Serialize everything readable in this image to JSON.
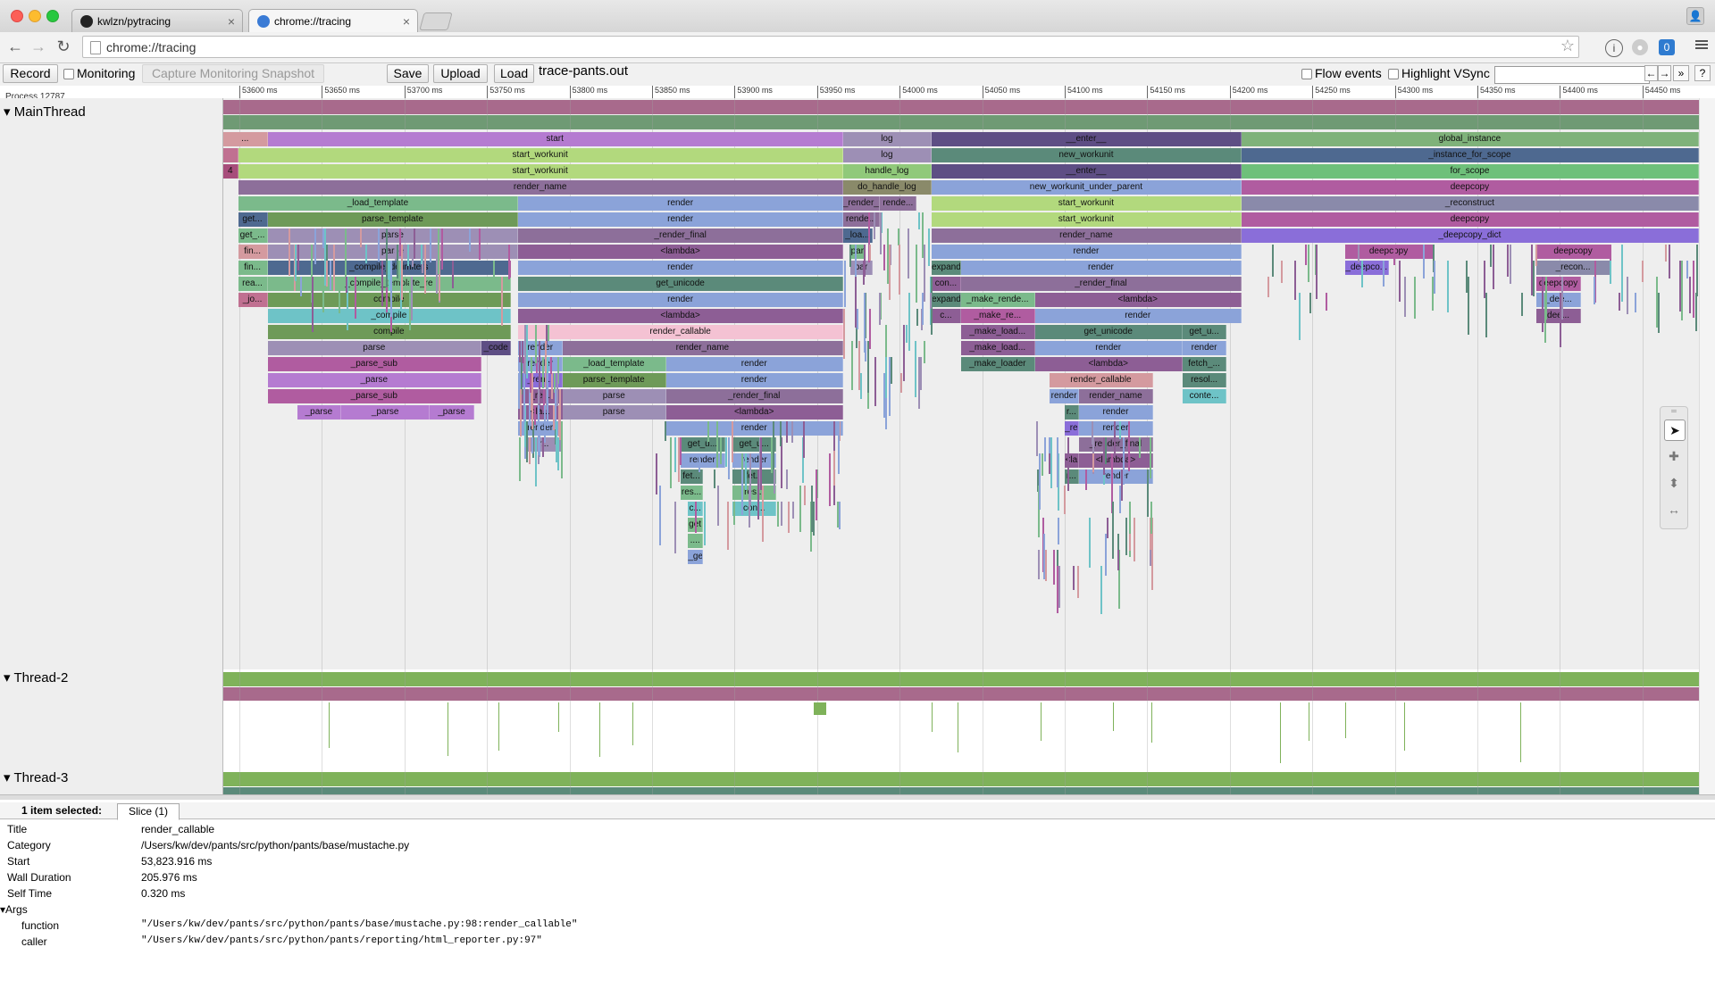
{
  "browser": {
    "tabs": [
      {
        "label": "kwlzn/pytracing",
        "active": false
      },
      {
        "label": "chrome://tracing",
        "active": true
      }
    ],
    "url": "chrome://tracing"
  },
  "tracebar": {
    "record": "Record",
    "monitoring": "Monitoring",
    "capture": "Capture Monitoring Snapshot",
    "save": "Save",
    "upload": "Upload",
    "load": "Load",
    "filename": "trace-pants.out",
    "flow_events": "Flow events",
    "highlight_vsync": "Highlight VSync",
    "search_placeholder": "",
    "prev": "←",
    "next": "→",
    "expand": "»",
    "help": "?"
  },
  "ruler": {
    "ticks": [
      "53600 ms",
      "53650 ms",
      "53700 ms",
      "53750 ms",
      "53800 ms",
      "53850 ms",
      "53900 ms",
      "53950 ms",
      "54000 ms",
      "54050 ms",
      "54100 ms",
      "54150 ms",
      "54200 ms",
      "54250 ms",
      "54300 ms",
      "54350 ms",
      "54400 ms",
      "54450 ms"
    ]
  },
  "process_label": "Process 12787",
  "threads": {
    "main": "MainThread",
    "thread2": "Thread-2",
    "thread3": "Thread-3"
  },
  "slices": [
    {
      "row": 2,
      "start": 0,
      "end": 3,
      "label": "...",
      "color": "#d49a9f"
    },
    {
      "row": 2,
      "start": 3,
      "end": 42,
      "label": "start",
      "color": "#b57bd1"
    },
    {
      "row": 2,
      "start": 42,
      "end": 48,
      "label": "log",
      "color": "#9d8fb5"
    },
    {
      "row": 2,
      "start": 48,
      "end": 69,
      "label": "__enter__",
      "color": "#5e4e84"
    },
    {
      "row": 2,
      "start": 69,
      "end": 100,
      "label": "global_instance",
      "color": "#7fb27a"
    },
    {
      "row": 3,
      "start": 0,
      "end": 1,
      "label": "",
      "color": "#c07091"
    },
    {
      "row": 3,
      "start": 1,
      "end": 42,
      "label": "start_workunit",
      "color": "#b2d97d"
    },
    {
      "row": 3,
      "start": 42,
      "end": 48,
      "label": "log",
      "color": "#9d8fb5"
    },
    {
      "row": 3,
      "start": 48,
      "end": 69,
      "label": "new_workunit",
      "color": "#5b8a7a"
    },
    {
      "row": 3,
      "start": 69,
      "end": 100,
      "label": "_instance_for_scope",
      "color": "#4e6990"
    },
    {
      "row": 4,
      "start": 0,
      "end": 1,
      "label": "4",
      "color": "#a74d7b"
    },
    {
      "row": 4,
      "start": 1,
      "end": 42,
      "label": "start_workunit",
      "color": "#b2d97d"
    },
    {
      "row": 4,
      "start": 42,
      "end": 48,
      "label": "handle_log",
      "color": "#90c97a"
    },
    {
      "row": 4,
      "start": 48,
      "end": 69,
      "label": "__enter__",
      "color": "#5e4e84"
    },
    {
      "row": 4,
      "start": 69,
      "end": 100,
      "label": "for_scope",
      "color": "#6ec07a"
    },
    {
      "row": 5,
      "start": 1,
      "end": 42,
      "label": "render_name",
      "color": "#8d6f9a"
    },
    {
      "row": 5,
      "start": 42,
      "end": 48,
      "label": "do_handle_log",
      "color": "#8a8a6a"
    },
    {
      "row": 5,
      "start": 48,
      "end": 69,
      "label": "new_workunit_under_parent",
      "color": "#8ba3d9"
    },
    {
      "row": 5,
      "start": 69,
      "end": 100,
      "label": "deepcopy",
      "color": "#b05ca0"
    },
    {
      "row": 6,
      "start": 1,
      "end": 20,
      "label": "_load_template",
      "color": "#7bba8b"
    },
    {
      "row": 6,
      "start": 20,
      "end": 42,
      "label": "render",
      "color": "#8ba3d9"
    },
    {
      "row": 6,
      "start": 42,
      "end": 44.5,
      "label": "_render_...",
      "color": "#8d6f9a"
    },
    {
      "row": 6,
      "start": 44.5,
      "end": 47,
      "label": "rende...",
      "color": "#8d6f9a"
    },
    {
      "row": 6,
      "start": 48,
      "end": 69,
      "label": "start_workunit",
      "color": "#b2d97d"
    },
    {
      "row": 6,
      "start": 69,
      "end": 100,
      "label": "_reconstruct",
      "color": "#8a8aaa"
    },
    {
      "row": 7,
      "start": 1,
      "end": 3,
      "label": "get...",
      "color": "#4e6990"
    },
    {
      "row": 7,
      "start": 3,
      "end": 20,
      "label": "parse_template",
      "color": "#6e9a58"
    },
    {
      "row": 7,
      "start": 20,
      "end": 42,
      "label": "render",
      "color": "#8ba3d9"
    },
    {
      "row": 7,
      "start": 42,
      "end": 44.5,
      "label": "rende...",
      "color": "#8d6f9a"
    },
    {
      "row": 7,
      "start": 48,
      "end": 69,
      "label": "start_workunit",
      "color": "#b2d97d"
    },
    {
      "row": 7,
      "start": 69,
      "end": 100,
      "label": "deepcopy",
      "color": "#b05ca0"
    },
    {
      "row": 8,
      "start": 1,
      "end": 3,
      "label": "get_...",
      "color": "#7bba8b"
    },
    {
      "row": 8,
      "start": 3,
      "end": 20,
      "label": "parse",
      "color": "#9d8fb5"
    },
    {
      "row": 8,
      "start": 20,
      "end": 42,
      "label": "_render_final",
      "color": "#8d6f9a"
    },
    {
      "row": 8,
      "start": 42,
      "end": 44,
      "label": "_loa...",
      "color": "#4e6990"
    },
    {
      "row": 8,
      "start": 48,
      "end": 69,
      "label": "render_name",
      "color": "#8d6f9a"
    },
    {
      "row": 8,
      "start": 69,
      "end": 100,
      "label": "_deepcopy_dict",
      "color": "#8a6ed9"
    },
    {
      "row": 9,
      "start": 1,
      "end": 3,
      "label": "fin...",
      "color": "#d49a9f"
    },
    {
      "row": 9,
      "start": 3,
      "end": 20,
      "label": "parse",
      "color": "#9d8fb5"
    },
    {
      "row": 9,
      "start": 20,
      "end": 42,
      "label": "<lambda>",
      "color": "#8d5e95"
    },
    {
      "row": 9,
      "start": 42.5,
      "end": 43.5,
      "label": "par",
      "color": "#7bba8b"
    },
    {
      "row": 9,
      "start": 48,
      "end": 69,
      "label": "render",
      "color": "#8ba3d9"
    },
    {
      "row": 9,
      "start": 76,
      "end": 82,
      "label": "deepcopy",
      "color": "#b05ca0"
    },
    {
      "row": 9,
      "start": 89,
      "end": 94,
      "label": "deepcopy",
      "color": "#b05ca0"
    },
    {
      "row": 10,
      "start": 1,
      "end": 3,
      "label": "fin...",
      "color": "#7bba8b"
    },
    {
      "row": 10,
      "start": 3,
      "end": 19.5,
      "label": "_compile_delimiters",
      "color": "#4e6990"
    },
    {
      "row": 10,
      "start": 20,
      "end": 42,
      "label": "render",
      "color": "#8ba3d9"
    },
    {
      "row": 10,
      "start": 42.5,
      "end": 44,
      "label": "par",
      "color": "#9d8fb5"
    },
    {
      "row": 10,
      "start": 48,
      "end": 50,
      "label": "expand",
      "color": "#5b8a7a"
    },
    {
      "row": 10,
      "start": 50,
      "end": 69,
      "label": "render",
      "color": "#8ba3d9"
    },
    {
      "row": 10,
      "start": 76,
      "end": 79,
      "label": "_deepco...",
      "color": "#8a6ed9"
    },
    {
      "row": 10,
      "start": 89,
      "end": 94,
      "label": "_recon...",
      "color": "#8a8aaa"
    },
    {
      "row": 11,
      "start": 1,
      "end": 3,
      "label": "rea...",
      "color": "#7bba8b"
    },
    {
      "row": 11,
      "start": 3,
      "end": 19.5,
      "label": "_compile_template_re",
      "color": "#7bba8b"
    },
    {
      "row": 11,
      "start": 20,
      "end": 42,
      "label": "get_unicode",
      "color": "#5b8a7a"
    },
    {
      "row": 11,
      "start": 48,
      "end": 50,
      "label": "con...",
      "color": "#8d5e95"
    },
    {
      "row": 11,
      "start": 50,
      "end": 69,
      "label": "_render_final",
      "color": "#8d6f9a"
    },
    {
      "row": 11,
      "start": 89,
      "end": 92,
      "label": "deepcopy",
      "color": "#b05ca0"
    },
    {
      "row": 12,
      "start": 1,
      "end": 3,
      "label": "_jo...",
      "color": "#c07091"
    },
    {
      "row": 12,
      "start": 3,
      "end": 19.5,
      "label": "compile",
      "color": "#6e9a58"
    },
    {
      "row": 12,
      "start": 20,
      "end": 42,
      "label": "render",
      "color": "#8ba3d9"
    },
    {
      "row": 12,
      "start": 48,
      "end": 50,
      "label": "expand",
      "color": "#5b8a7a"
    },
    {
      "row": 12,
      "start": 50,
      "end": 55,
      "label": "_make_rende...",
      "color": "#7bba8b"
    },
    {
      "row": 12,
      "start": 55,
      "end": 69,
      "label": "<lambda>",
      "color": "#8d5e95"
    },
    {
      "row": 12,
      "start": 89,
      "end": 92,
      "label": "_dee...",
      "color": "#8ba3d9"
    },
    {
      "row": 13,
      "start": 3,
      "end": 19.5,
      "label": "_compile",
      "color": "#6ec3c7"
    },
    {
      "row": 13,
      "start": 20,
      "end": 42,
      "label": "<lambda>",
      "color": "#8d5e95"
    },
    {
      "row": 13,
      "start": 48,
      "end": 50,
      "label": "c...",
      "color": "#8d5e95"
    },
    {
      "row": 13,
      "start": 50,
      "end": 55,
      "label": "_make_re...",
      "color": "#b05ca0"
    },
    {
      "row": 13,
      "start": 55,
      "end": 69,
      "label": "render",
      "color": "#8ba3d9"
    },
    {
      "row": 13,
      "start": 89,
      "end": 92,
      "label": "dee...",
      "color": "#8d5e95"
    },
    {
      "row": 14,
      "start": 3,
      "end": 19.5,
      "label": "compile",
      "color": "#6e9a58"
    },
    {
      "row": 14,
      "start": 20,
      "end": 42,
      "label": "render_callable",
      "color": "#f4c2d3"
    },
    {
      "row": 14,
      "start": 50,
      "end": 55,
      "label": "_make_load...",
      "color": "#8d5e95"
    },
    {
      "row": 14,
      "start": 55,
      "end": 65,
      "label": "get_unicode",
      "color": "#5b8a7a"
    },
    {
      "row": 14,
      "start": 65,
      "end": 68,
      "label": "get_u...",
      "color": "#5b8a7a"
    },
    {
      "row": 15,
      "start": 3,
      "end": 17.5,
      "label": "parse",
      "color": "#9d8fb5"
    },
    {
      "row": 15,
      "start": 17.5,
      "end": 19.5,
      "label": "_code",
      "color": "#5e4e84"
    },
    {
      "row": 15,
      "start": 20,
      "end": 23,
      "label": "render",
      "color": "#8ba3d9"
    },
    {
      "row": 15,
      "start": 23,
      "end": 42,
      "label": "render_name",
      "color": "#8d6f9a"
    },
    {
      "row": 15,
      "start": 50,
      "end": 55,
      "label": "_make_load...",
      "color": "#8d5e95"
    },
    {
      "row": 15,
      "start": 55,
      "end": 65,
      "label": "render",
      "color": "#8ba3d9"
    },
    {
      "row": 15,
      "start": 65,
      "end": 68,
      "label": "render",
      "color": "#8ba3d9"
    },
    {
      "row": 16,
      "start": 3,
      "end": 17.5,
      "label": "_parse_sub",
      "color": "#b05ca0"
    },
    {
      "row": 16,
      "start": 20,
      "end": 23,
      "label": "render",
      "color": "#8ba3d9"
    },
    {
      "row": 16,
      "start": 23,
      "end": 30,
      "label": "_load_template",
      "color": "#7bba8b"
    },
    {
      "row": 16,
      "start": 30,
      "end": 42,
      "label": "render",
      "color": "#8ba3d9"
    },
    {
      "row": 16,
      "start": 50,
      "end": 55,
      "label": "_make_loader",
      "color": "#5b8a7a"
    },
    {
      "row": 16,
      "start": 55,
      "end": 65,
      "label": "<lambda>",
      "color": "#8d5e95"
    },
    {
      "row": 16,
      "start": 65,
      "end": 68,
      "label": "fetch_...",
      "color": "#5b8a7a"
    },
    {
      "row": 17,
      "start": 3,
      "end": 17.5,
      "label": "_parse",
      "color": "#b57bd1"
    },
    {
      "row": 17,
      "start": 20,
      "end": 23,
      "label": "_ren...",
      "color": "#8a6ed9"
    },
    {
      "row": 17,
      "start": 23,
      "end": 30,
      "label": "parse_template",
      "color": "#6e9a58"
    },
    {
      "row": 17,
      "start": 30,
      "end": 42,
      "label": "render",
      "color": "#8ba3d9"
    },
    {
      "row": 17,
      "start": 56,
      "end": 63,
      "label": "render_callable",
      "color": "#d49a9f"
    },
    {
      "row": 17,
      "start": 65,
      "end": 68,
      "label": "resol...",
      "color": "#5b8a7a"
    },
    {
      "row": 18,
      "start": 3,
      "end": 17.5,
      "label": "_parse_sub",
      "color": "#b05ca0"
    },
    {
      "row": 18,
      "start": 20,
      "end": 23,
      "label": "_re...",
      "color": "#8d5e95"
    },
    {
      "row": 18,
      "start": 23,
      "end": 30,
      "label": "parse",
      "color": "#9d8fb5"
    },
    {
      "row": 18,
      "start": 30,
      "end": 42,
      "label": "_render_final",
      "color": "#8d6f9a"
    },
    {
      "row": 18,
      "start": 56,
      "end": 58,
      "label": "render",
      "color": "#8ba3d9"
    },
    {
      "row": 18,
      "start": 58,
      "end": 63,
      "label": "render_name",
      "color": "#8d6f9a"
    },
    {
      "row": 18,
      "start": 65,
      "end": 68,
      "label": "conte...",
      "color": "#6ec3c7"
    },
    {
      "row": 19,
      "start": 5,
      "end": 8,
      "label": "_parse",
      "color": "#b57bd1"
    },
    {
      "row": 19,
      "start": 8,
      "end": 14,
      "label": "_parse",
      "color": "#b57bd1"
    },
    {
      "row": 19,
      "start": 14,
      "end": 17,
      "label": "_parse",
      "color": "#b57bd1"
    },
    {
      "row": 19,
      "start": 20,
      "end": 23,
      "label": "<la...",
      "color": "#8d5e95"
    },
    {
      "row": 19,
      "start": 23,
      "end": 30,
      "label": "parse",
      "color": "#9d8fb5"
    },
    {
      "row": 19,
      "start": 30,
      "end": 42,
      "label": "<lambda>",
      "color": "#8d5e95"
    },
    {
      "row": 19,
      "start": 57,
      "end": 58,
      "label": "r...",
      "color": "#5b8a7a"
    },
    {
      "row": 19,
      "start": 58,
      "end": 63,
      "label": "render",
      "color": "#8ba3d9"
    },
    {
      "row": 20,
      "start": 20,
      "end": 23,
      "label": "render",
      "color": "#8ba3d9"
    },
    {
      "row": 20,
      "start": 30,
      "end": 42,
      "label": "render",
      "color": "#8ba3d9"
    },
    {
      "row": 20,
      "start": 57,
      "end": 58,
      "label": "_re",
      "color": "#8a6ed9"
    },
    {
      "row": 20,
      "start": 58,
      "end": 63,
      "label": "render",
      "color": "#8ba3d9"
    },
    {
      "row": 21,
      "start": 20.5,
      "end": 23,
      "label": "r...",
      "color": "#9d8fb5"
    },
    {
      "row": 21,
      "start": 31,
      "end": 34,
      "label": "get_u...",
      "color": "#5b8a7a"
    },
    {
      "row": 21,
      "start": 34.5,
      "end": 37.5,
      "label": "get_u...",
      "color": "#5b8a7a"
    },
    {
      "row": 21,
      "start": 58,
      "end": 63,
      "label": "_render_final",
      "color": "#8d6f9a"
    },
    {
      "row": 22,
      "start": 31,
      "end": 34,
      "label": "render",
      "color": "#8ba3d9"
    },
    {
      "row": 22,
      "start": 34.5,
      "end": 37.5,
      "label": "render",
      "color": "#8ba3d9"
    },
    {
      "row": 22,
      "start": 57,
      "end": 58,
      "label": "<la",
      "color": "#8d5e95"
    },
    {
      "row": 22,
      "start": 58,
      "end": 63,
      "label": "<lambda>",
      "color": "#8d5e95"
    },
    {
      "row": 23,
      "start": 31,
      "end": 32.5,
      "label": "fet...",
      "color": "#5b8a7a"
    },
    {
      "row": 23,
      "start": 34.5,
      "end": 37.5,
      "label": "fet...",
      "color": "#5b8a7a"
    },
    {
      "row": 23,
      "start": 57,
      "end": 58,
      "label": "r...",
      "color": "#5b8a7a"
    },
    {
      "row": 23,
      "start": 58,
      "end": 63,
      "label": "render",
      "color": "#8ba3d9"
    },
    {
      "row": 24,
      "start": 31,
      "end": 32.5,
      "label": "res...",
      "color": "#7bba8b"
    },
    {
      "row": 24,
      "start": 34.5,
      "end": 37.5,
      "label": "res...",
      "color": "#7bba8b"
    },
    {
      "row": 25,
      "start": 31.5,
      "end": 32.5,
      "label": "c...",
      "color": "#6ec3c7"
    },
    {
      "row": 25,
      "start": 34.5,
      "end": 37.5,
      "label": "con...",
      "color": "#6ec3c7"
    },
    {
      "row": 26,
      "start": 31.5,
      "end": 32.5,
      "label": "get",
      "color": "#7bba8b"
    },
    {
      "row": 27,
      "start": 31.5,
      "end": 32.5,
      "label": "....",
      "color": "#7bba8b"
    },
    {
      "row": 28,
      "start": 31.5,
      "end": 32.5,
      "label": "_ge",
      "color": "#8ba3d9"
    }
  ],
  "selection": {
    "count_label": "1 item selected:",
    "tab_label": "Slice (1)",
    "rows": [
      {
        "key": "Title",
        "value": "render_callable"
      },
      {
        "key": "Category",
        "value": "/Users/kw/dev/pants/src/python/pants/base/mustache.py"
      },
      {
        "key": "Start",
        "value": "53,823.916 ms"
      },
      {
        "key": "Wall Duration",
        "value": "205.976 ms"
      },
      {
        "key": "Self Time",
        "value": "0.320 ms"
      }
    ],
    "args_label": "▾Args",
    "args": [
      {
        "key": "function",
        "value": "\"/Users/kw/dev/pants/src/python/pants/base/mustache.py:98:render_callable\""
      },
      {
        "key": "caller",
        "value": "\"/Users/kw/dev/pants/src/python/pants/reporting/html_reporter.py:97\""
      }
    ]
  },
  "colors": {
    "row0": "#a86a8c",
    "row1": "#6f9a74",
    "thread_green": "#7fb25a",
    "thread_mauve": "#a86a8c"
  }
}
